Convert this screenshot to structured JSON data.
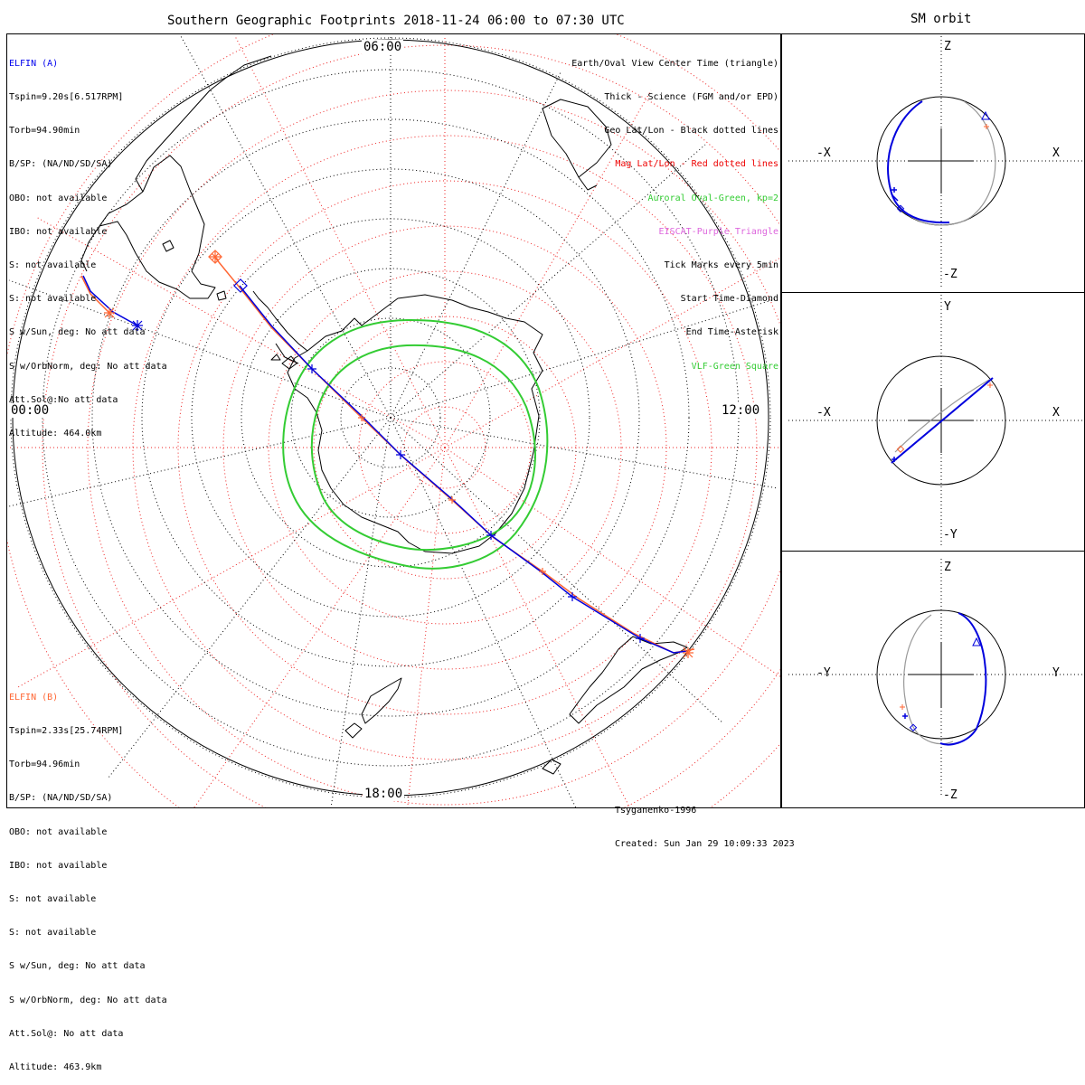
{
  "main_title": "Southern Geographic Footprints 2018-11-24 06:00 to 07:30 UTC",
  "side_title": "SM orbit",
  "time_labels": {
    "top": "06:00",
    "left": "00:00",
    "right": "12:00",
    "bottom": "18:00"
  },
  "elfin_a": {
    "name": "ELFIN (A)",
    "color": "#0000ee",
    "lines": [
      "Tspin=9.20s[6.517RPM]",
      "Torb=94.90min",
      "B/SP: (NA/ND/SD/SA)",
      "OBO: not available",
      "IBO: not available",
      "S: not available",
      "S: not available",
      "S w/Sun, deg: No att data",
      "S w/OrbNorm, deg: No att data",
      "Att.Sol@:No att data",
      "Altitude: 464.0km"
    ]
  },
  "elfin_b": {
    "name": "ELFIN (B)",
    "color": "#ff6633",
    "lines": [
      "Tspin=2.33s[25.74RPM]",
      "Torb=94.96min",
      "B/SP: (NA/ND/SD/SA)",
      "OBO: not available",
      "IBO: not available",
      "S: not available",
      "S: not available",
      "S w/Sun, deg: No att data",
      "S w/OrbNorm, deg: No att data",
      "Att.Sol@: No att data",
      "Altitude: 463.9km"
    ]
  },
  "legend": [
    {
      "text": "Earth/Oval View Center Time (triangle)",
      "color": "#000000"
    },
    {
      "text": "Thick - Science (FGM and/or EPD)",
      "color": "#000000"
    },
    {
      "text": "Geo Lat/Lon - Black dotted lines",
      "color": "#000000"
    },
    {
      "text": "Mag Lat/Lon - Red dotted lines",
      "color": "#ee0000"
    },
    {
      "text": "Auroral Oval-Green, kp=2",
      "color": "#33cc33"
    },
    {
      "text": "EISCAT-Purple Triangle",
      "color": "#dd66dd"
    },
    {
      "text": "Tick Marks every 5min",
      "color": "#000000"
    },
    {
      "text": "Start Time-Diamond",
      "color": "#000000"
    },
    {
      "text": "End Time-Asterisk",
      "color": "#000000"
    },
    {
      "text": "VLF-Green Square",
      "color": "#33cc33"
    }
  ],
  "footer": {
    "model": "Tsyganenko-1996",
    "created": "Created: Sun Jan 29 10:09:33 2023"
  },
  "orbit_panels": [
    {
      "top_axis": "Z",
      "bottom_axis": "-Z",
      "left_axis": "-X",
      "right_axis": "X"
    },
    {
      "top_axis": "Y",
      "bottom_axis": "-Y",
      "left_axis": "-X",
      "right_axis": "X"
    },
    {
      "top_axis": "Z",
      "bottom_axis": "-Z",
      "left_axis": "-Y",
      "right_axis": "Y"
    }
  ],
  "colors": {
    "geo_grid": "#000000",
    "mag_grid": "#ee2222",
    "auroral_oval": "#33cc33",
    "track_a": "#0000dd",
    "track_b": "#ff6633",
    "orbit_back": "#999999"
  }
}
